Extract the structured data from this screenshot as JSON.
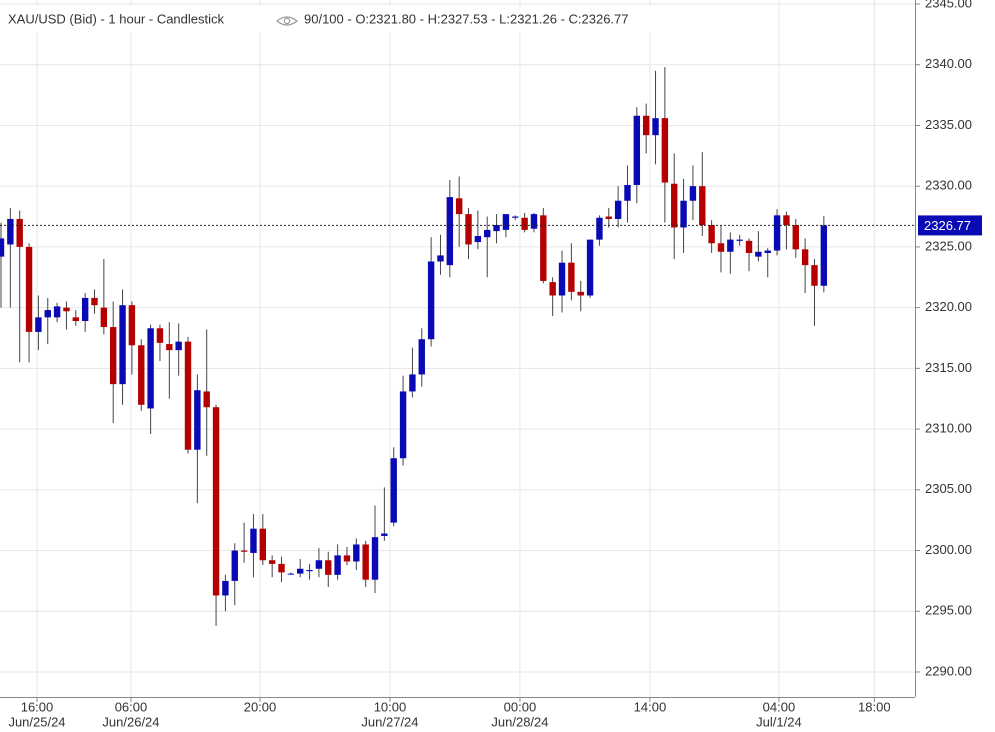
{
  "chart_data": {
    "type": "candlestick",
    "title": "XAU/USD (Bid) - 1 hour - Candlestick",
    "readout": "90/100 - O:2321.80 - H:2327.53 - L:2321.26 - C:2326.77",
    "up_color": "#0a0ab4",
    "down_color": "#b40000",
    "grid": true,
    "ylim": [
      2287.94,
      2345.33
    ],
    "yticks": [
      {
        "value": 2290,
        "label": "2290.00"
      },
      {
        "value": 2295,
        "label": "2295.00"
      },
      {
        "value": 2300,
        "label": "2300.00"
      },
      {
        "value": 2305,
        "label": "2305.00"
      },
      {
        "value": 2310,
        "label": "2310.00"
      },
      {
        "value": 2315,
        "label": "2315.00"
      },
      {
        "value": 2320,
        "label": "2320.00"
      },
      {
        "value": 2325,
        "label": "2325.00"
      },
      {
        "value": 2330,
        "label": "2330.00"
      },
      {
        "value": 2335,
        "label": "2335.00"
      },
      {
        "value": 2340,
        "label": "2340.00"
      },
      {
        "value": 2345,
        "label": "2345.00"
      }
    ],
    "xlim": [
      -0.107,
      97.75
    ],
    "xticks": [
      {
        "value": 3.85,
        "label": "16:00"
      },
      {
        "value": 13.9,
        "label": "06:00"
      },
      {
        "value": 27.7,
        "label": "20:00"
      },
      {
        "value": 41.6,
        "label": "10:00"
      },
      {
        "value": 55.5,
        "label": "00:00"
      },
      {
        "value": 69.4,
        "label": "14:00"
      },
      {
        "value": 83.2,
        "label": "04:00"
      },
      {
        "value": 93.4,
        "label": "18:00"
      }
    ],
    "xtick_dates": [
      "Jun/25/24",
      "Jun/26/24",
      null,
      "Jun/27/24",
      "Jun/28/24",
      null,
      "Jul/1/24",
      null
    ],
    "open": [
      2324.2,
      2325.2,
      2327.3,
      2325,
      2318,
      2319.2,
      2319.2,
      2320,
      2319.2,
      2318.9,
      2320.8,
      2320,
      2318.4,
      2313.7,
      2320.2,
      2316.9,
      2311.7,
      2318.3,
      2317,
      2316.5,
      2317.2,
      2308.3,
      2313.1,
      2311.8,
      2296.3,
      2297.5,
      2300,
      2299.8,
      2301.8,
      2299.2,
      2298.9,
      2298.1,
      2298.1,
      2298.3,
      2298.5,
      2299.2,
      2298,
      2299.6,
      2299.1,
      2300.5,
      2297.6,
      2301.2,
      2302.3,
      2307.6,
      2313.1,
      2314.5,
      2317.4,
      2323.8,
      2323.5,
      2329,
      2327.7,
      2325.4,
      2325.8,
      2326.3,
      2326.4,
      2327.4,
      2327.4,
      2326.5,
      2327.6,
      2322.1,
      2321,
      2323.7,
      2321.3,
      2321,
      2325.6,
      2327.5,
      2327.3,
      2328.8,
      2330.1,
      2335.8,
      2334.2,
      2335.6,
      2330.2,
      2326.6,
      2328.8,
      2330,
      2326.8,
      2325.3,
      2324.6,
      2325.5,
      2325.5,
      2324.2,
      2324.5,
      2324.7,
      2327.6,
      2326.8,
      2324.8,
      2323.5,
      2321.8
    ],
    "high": [
      2327,
      2328.2,
      2328,
      2325.3,
      2321,
      2320.8,
      2320.4,
      2320.5,
      2319.8,
      2321.2,
      2321.5,
      2324,
      2320.5,
      2321.5,
      2320.5,
      2317.4,
      2318.6,
      2318.6,
      2318.8,
      2318.7,
      2317.6,
      2314.5,
      2318.2,
      2312,
      2298,
      2300.6,
      2302.3,
      2303,
      2303,
      2299.6,
      2299.5,
      2298.2,
      2299.3,
      2298.9,
      2300.2,
      2299.9,
      2300.5,
      2300.3,
      2301,
      2300.8,
      2303.7,
      2305.2,
      2308.5,
      2314.4,
      2316.7,
      2318.3,
      2325.8,
      2326,
      2330.5,
      2330.8,
      2328.2,
      2328,
      2327.5,
      2327.7,
      2327.5,
      2327.6,
      2327.8,
      2327.8,
      2328.2,
      2322.5,
      2324.7,
      2325.3,
      2322.2,
      2325.6,
      2327.6,
      2328.2,
      2330,
      2331.7,
      2336.5,
      2336.8,
      2339.5,
      2339.8,
      2332.7,
      2330.6,
      2331.7,
      2332.8,
      2327.2,
      2326.8,
      2326.2,
      2326,
      2325.7,
      2326.3,
      2324.9,
      2328.1,
      2327.9,
      2327.3,
      2325.7,
      2324,
      2327.53
    ],
    "low": [
      2320,
      2320,
      2315.5,
      2315.5,
      2316.5,
      2317,
      2318.8,
      2318.2,
      2318.5,
      2318,
      2319.5,
      2317.8,
      2310.5,
      2312,
      2314.5,
      2311.5,
      2309.6,
      2315.6,
      2312.5,
      2314.4,
      2308,
      2303.9,
      2307.8,
      2293.8,
      2295,
      2295.5,
      2299,
      2297.8,
      2298.8,
      2297.8,
      2297.4,
      2298,
      2297.8,
      2297.6,
      2297.8,
      2297,
      2297.6,
      2298.8,
      2298.4,
      2297,
      2296.5,
      2300.8,
      2302,
      2307,
      2312.6,
      2313.5,
      2316.8,
      2322.7,
      2322.5,
      2325,
      2324,
      2324.8,
      2322.5,
      2325.3,
      2325.8,
      2327.2,
      2326.2,
      2326.2,
      2322,
      2319.3,
      2319.6,
      2320.6,
      2319.7,
      2320.8,
      2325.1,
      2326.6,
      2326.6,
      2327,
      2328.6,
      2332.7,
      2331.8,
      2327,
      2324,
      2324.5,
      2327.2,
      2325.9,
      2324.5,
      2322.9,
      2322.8,
      2325.1,
      2323,
      2323.8,
      2322.5,
      2324.3,
      2324.8,
      2324.1,
      2321.2,
      2318.5,
      2321.26
    ],
    "close": [
      2325.7,
      2327.3,
      2325,
      2318,
      2319.2,
      2319.8,
      2320.1,
      2319.7,
      2318.9,
      2320.8,
      2320.2,
      2318.4,
      2313.7,
      2320.2,
      2316.9,
      2312,
      2318.3,
      2317.1,
      2316.5,
      2317.2,
      2308.3,
      2313.2,
      2311.8,
      2296.3,
      2297.5,
      2300,
      2299.9,
      2301.8,
      2299.2,
      2298.9,
      2298.2,
      2298.1,
      2298.5,
      2298.4,
      2299.2,
      2298,
      2299.6,
      2299.1,
      2300.5,
      2297.6,
      2301.1,
      2301.4,
      2307.6,
      2313.1,
      2314.5,
      2317.4,
      2323.8,
      2324.3,
      2329.1,
      2327.7,
      2325.2,
      2325.9,
      2326.4,
      2326.8,
      2327.7,
      2327.5,
      2326.4,
      2327.7,
      2322.2,
      2321,
      2323.7,
      2321.3,
      2321,
      2325.6,
      2327.4,
      2327.3,
      2328.8,
      2330.1,
      2335.8,
      2334.2,
      2335.6,
      2330.3,
      2326.6,
      2328.8,
      2330,
      2326.8,
      2325.3,
      2324.6,
      2325.6,
      2325.6,
      2324.5,
      2324.6,
      2324.7,
      2327.6,
      2326.8,
      2324.8,
      2323.5,
      2321.8,
      2326.77
    ]
  }
}
